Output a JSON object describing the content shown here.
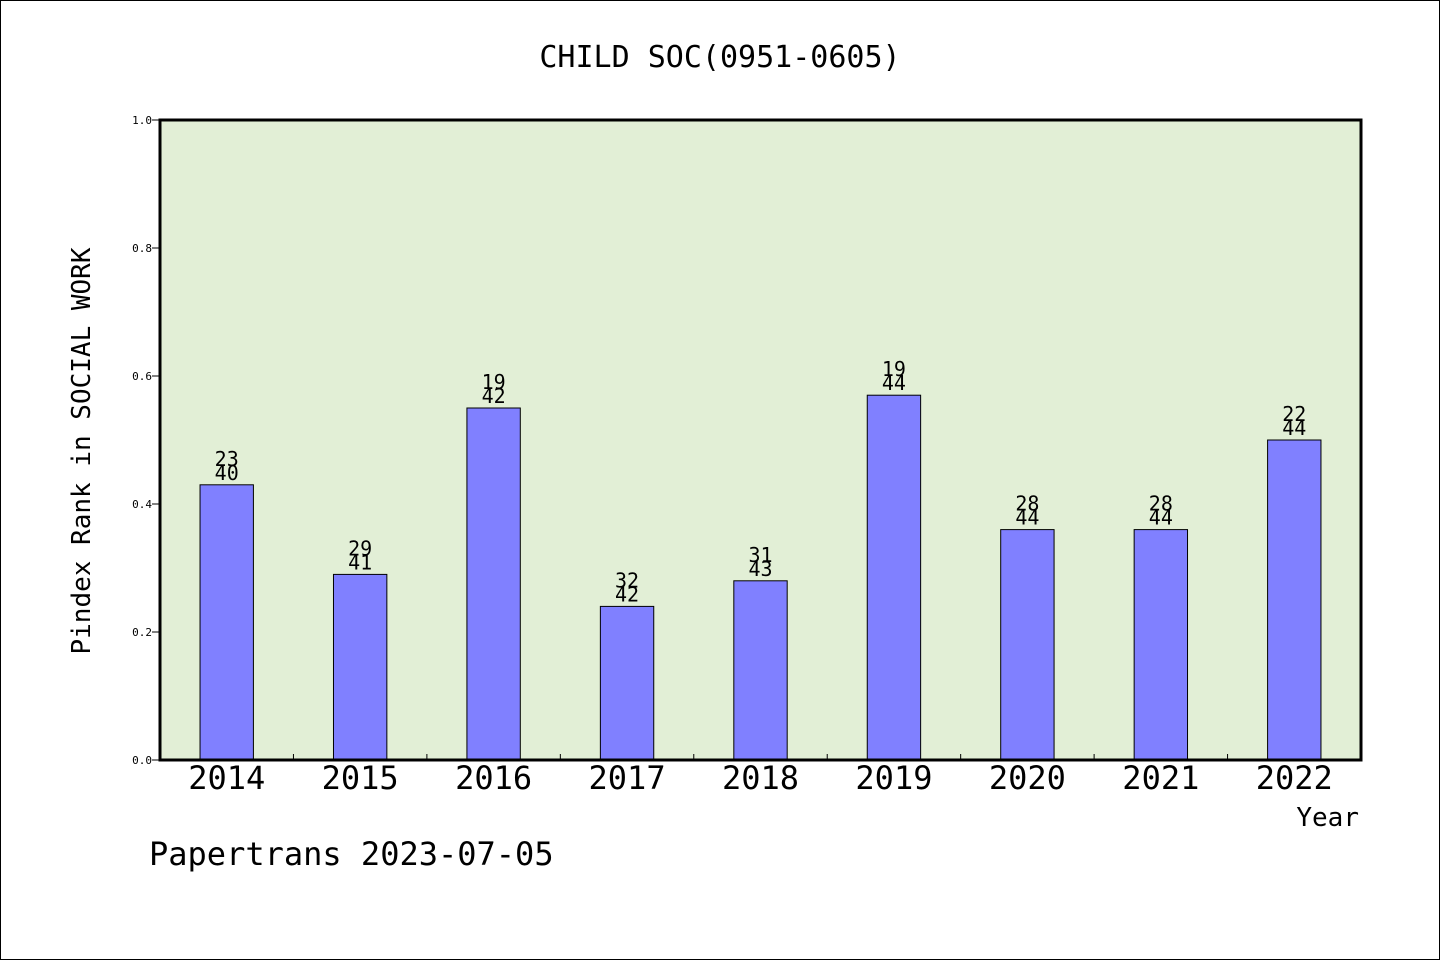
{
  "chart_data": {
    "type": "bar",
    "title": "CHILD SOC(0951-0605)",
    "xlabel": "Year",
    "ylabel": "Pindex Rank in SOCIAL WORK",
    "ylim": [
      0,
      1.0
    ],
    "yticks": [
      "0.0",
      "0.2",
      "0.4",
      "0.6",
      "0.8",
      "1.0"
    ],
    "categories": [
      "2014",
      "2015",
      "2016",
      "2017",
      "2018",
      "2019",
      "2020",
      "2021",
      "2022"
    ],
    "values": [
      0.43,
      0.29,
      0.55,
      0.24,
      0.28,
      0.57,
      0.36,
      0.36,
      0.5
    ],
    "rank": [
      "23",
      "29",
      "19",
      "32",
      "31",
      "19",
      "28",
      "28",
      "22"
    ],
    "total": [
      "40",
      "41",
      "42",
      "42",
      "43",
      "44",
      "44",
      "44",
      "44"
    ],
    "grid": false,
    "colors": {
      "plot_background": "#e2efd6",
      "bar_fill": "#8080ff",
      "bar_stroke": "#000000"
    }
  },
  "footer": "Papertrans 2023-07-05"
}
